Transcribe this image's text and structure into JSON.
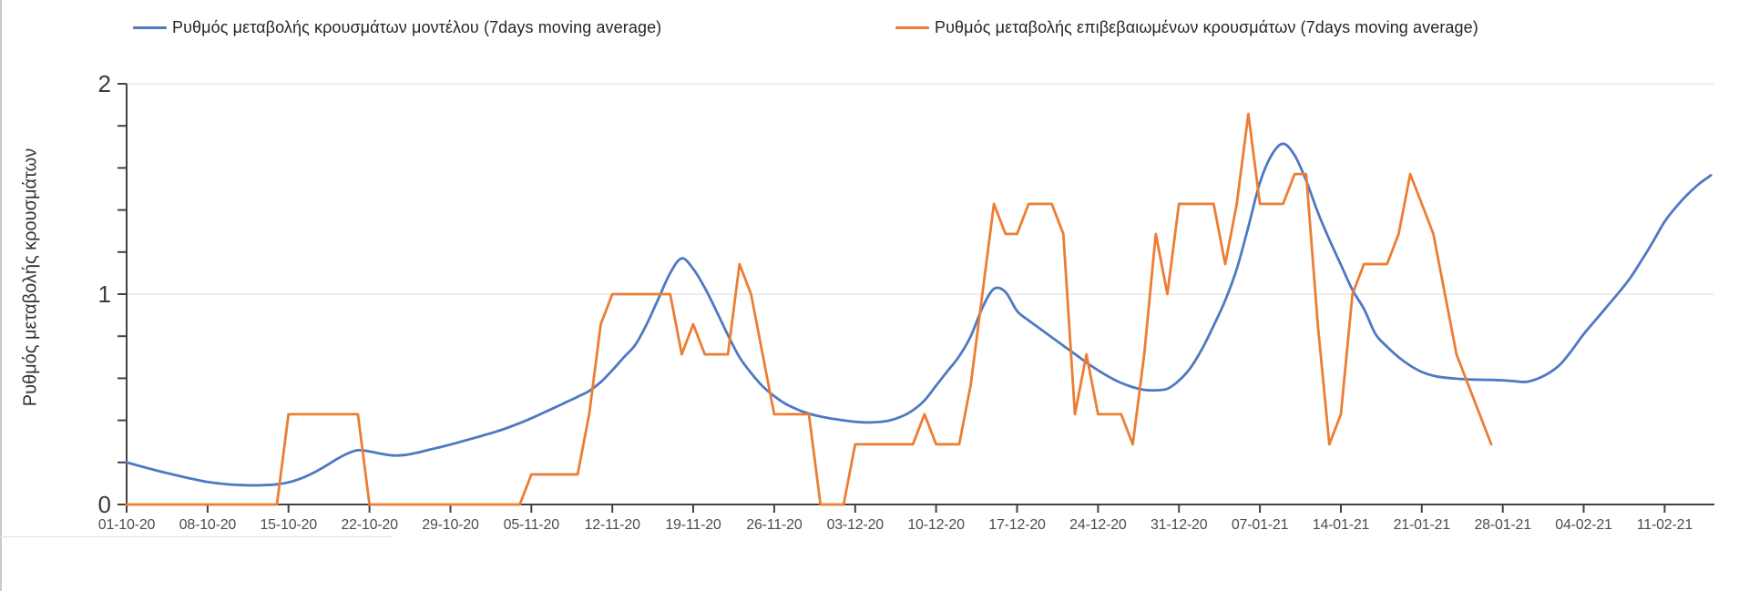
{
  "page": {
    "background": "#ffffff"
  },
  "axes": {
    "y_title": "Ρυθμός μεταβολής κρουσμάτων",
    "y_tick_labels": [
      "0",
      "1",
      "2"
    ],
    "y_tick_values": [
      0,
      1,
      2
    ],
    "y_minor_tick_step": 0.2,
    "x_tick_labels": [
      "01-10-20",
      "08-10-20",
      "15-10-20",
      "22-10-20",
      "29-10-20",
      "05-11-20",
      "12-11-20",
      "19-11-20",
      "26-11-20",
      "03-12-20",
      "10-12-20",
      "17-12-20",
      "24-12-20",
      "31-12-20",
      "07-01-21",
      "14-01-21",
      "21-01-21",
      "28-01-21",
      "04-02-21",
      "11-02-21"
    ],
    "axis_color": "#424242",
    "grid_color": "#e9e9e9",
    "tick_label_color": "#4d4d4d"
  },
  "chart_data": {
    "type": "line",
    "title": "",
    "xlabel": "",
    "ylabel": "Ρυθμός μεταβολής κρουσμάτων",
    "ylim": [
      0,
      2
    ],
    "grid_values": [
      1,
      2
    ],
    "grid": "horizontal gridlines at y=1 and y=2",
    "legend_position": "top",
    "x_start_date": "01-10-20",
    "x_interval": "daily",
    "x_tick_interval_days": 7,
    "x_tick_labels": [
      "01-10-20",
      "08-10-20",
      "15-10-20",
      "22-10-20",
      "29-10-20",
      "05-11-20",
      "12-11-20",
      "19-11-20",
      "26-11-20",
      "03-12-20",
      "10-12-20",
      "17-12-20",
      "24-12-20",
      "31-12-20",
      "07-01-21",
      "14-01-21",
      "21-01-21",
      "28-01-21",
      "04-02-21",
      "11-02-21"
    ],
    "series": [
      {
        "name": "Ρυθμός μεταβολής κρουσμάτων μοντέλου (7days moving average)",
        "color": "#4d79c3",
        "smooth": true,
        "values": [
          0.2,
          0.185,
          0.17,
          0.156,
          0.143,
          0.13,
          0.118,
          0.107,
          0.1,
          0.095,
          0.092,
          0.091,
          0.092,
          0.096,
          0.105,
          0.122,
          0.146,
          0.176,
          0.21,
          0.24,
          0.258,
          0.252,
          0.241,
          0.233,
          0.235,
          0.245,
          0.258,
          0.271,
          0.285,
          0.3,
          0.315,
          0.331,
          0.347,
          0.366,
          0.387,
          0.41,
          0.435,
          0.46,
          0.486,
          0.512,
          0.54,
          0.582,
          0.638,
          0.7,
          0.76,
          0.86,
          0.98,
          1.1,
          1.17,
          1.12,
          1.03,
          0.92,
          0.805,
          0.7,
          0.625,
          0.562,
          0.515,
          0.478,
          0.452,
          0.432,
          0.418,
          0.408,
          0.4,
          0.393,
          0.39,
          0.392,
          0.4,
          0.418,
          0.448,
          0.495,
          0.565,
          0.635,
          0.705,
          0.8,
          0.935,
          1.025,
          1.01,
          0.92,
          0.875,
          0.835,
          0.795,
          0.755,
          0.715,
          0.675,
          0.638,
          0.605,
          0.578,
          0.558,
          0.545,
          0.543,
          0.55,
          0.589,
          0.65,
          0.74,
          0.85,
          0.97,
          1.12,
          1.32,
          1.53,
          1.66,
          1.715,
          1.66,
          1.54,
          1.39,
          1.26,
          1.14,
          1.02,
          0.93,
          0.81,
          0.75,
          0.7,
          0.66,
          0.63,
          0.612,
          0.603,
          0.598,
          0.595,
          0.593,
          0.592,
          0.59,
          0.586,
          0.583,
          0.598,
          0.625,
          0.668,
          0.735,
          0.81,
          0.875,
          0.94,
          1.005,
          1.075,
          1.16,
          1.25,
          1.345,
          1.415,
          1.475,
          1.525,
          1.565
        ]
      },
      {
        "name": "Ρυθμός μεταβολής επιβεβαιωμένων κρουσμάτων (7days moving average)",
        "color": "#ec7d33",
        "smooth": false,
        "values": [
          0,
          0,
          0,
          0,
          0,
          0,
          0,
          0,
          0,
          0,
          0,
          0,
          0,
          0,
          0.429,
          0.429,
          0.429,
          0.429,
          0.429,
          0.429,
          0.429,
          0,
          0,
          0,
          0,
          0,
          0,
          0,
          0,
          0,
          0,
          0,
          0,
          0,
          0,
          0.143,
          0.143,
          0.143,
          0.143,
          0.143,
          0.429,
          0.857,
          1.0,
          1.0,
          1.0,
          1.0,
          1.0,
          1.0,
          0.714,
          0.857,
          0.714,
          0.714,
          0.714,
          1.143,
          1.0,
          0.714,
          0.429,
          0.429,
          0.429,
          0.429,
          0,
          0,
          0,
          0.286,
          0.286,
          0.286,
          0.286,
          0.286,
          0.286,
          0.429,
          0.286,
          0.286,
          0.286,
          0.571,
          1.0,
          1.429,
          1.286,
          1.286,
          1.429,
          1.429,
          1.429,
          1.286,
          0.429,
          0.714,
          0.429,
          0.429,
          0.429,
          0.286,
          0.714,
          1.286,
          1.0,
          1.429,
          1.429,
          1.429,
          1.429,
          1.143,
          1.429,
          1.857,
          1.429,
          1.429,
          1.429,
          1.571,
          1.571,
          0.857,
          0.286,
          0.429,
          1.0,
          1.143,
          1.143,
          1.143,
          1.286,
          1.571,
          1.429,
          1.286,
          1.0,
          0.714,
          0.571,
          0.429,
          0.286
        ]
      }
    ]
  }
}
